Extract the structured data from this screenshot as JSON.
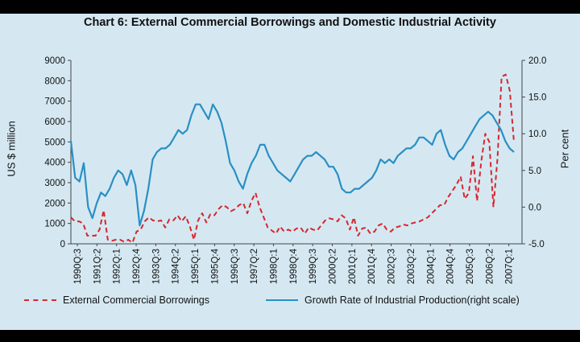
{
  "chart_data": {
    "type": "line",
    "title": "Chart 6: External Commercial Borrowings and Domestic Industrial Activity",
    "ylabel": "US $ million",
    "ylabel_right": "Per cent",
    "ylim": [
      0,
      9000
    ],
    "ylim_right": [
      -5.0,
      20.0
    ],
    "yticks": [
      "0",
      "1000",
      "2000",
      "3000",
      "4000",
      "5000",
      "6000",
      "7000",
      "8000",
      "9000"
    ],
    "yticks_right": [
      "-5.0",
      "0.0",
      "5.0",
      "10.0",
      "15.0",
      "20.0"
    ],
    "xticks": [
      "1990Q:3",
      "1991Q:2",
      "1992Q:1",
      "1992Q:4",
      "1993Q:3",
      "1994Q:2",
      "1995Q:1",
      "1995Q:4",
      "1996Q:3",
      "1997Q:2",
      "1998Q:1",
      "1998Q:4",
      "1999Q:3",
      "2000Q:2",
      "2001Q:1",
      "2001Q:4",
      "2002Q:3",
      "2003Q:2",
      "2004Q:1",
      "2004Q:4",
      "2005Q:3",
      "2006Q:2",
      "2007Q:1"
    ],
    "grid": false,
    "legend_position": "bottom",
    "series": [
      {
        "name": "External Commercial Borrowings",
        "axis": "left",
        "color": "#d6272d",
        "style": "dashed",
        "values": [
          1300,
          1100,
          1100,
          1000,
          400,
          400,
          400,
          700,
          1650,
          200,
          150,
          200,
          200,
          100,
          200,
          50,
          600,
          700,
          1100,
          1300,
          1150,
          1100,
          1150,
          800,
          1200,
          1150,
          1400,
          1100,
          1350,
          850,
          200,
          1150,
          1500,
          1050,
          1450,
          1400,
          1700,
          1900,
          1800,
          1600,
          1700,
          1900,
          2000,
          1500,
          2100,
          2500,
          1800,
          1300,
          800,
          650,
          500,
          850,
          600,
          700,
          600,
          750,
          800,
          500,
          800,
          700,
          650,
          900,
          1150,
          1250,
          1200,
          1100,
          1400,
          1250,
          700,
          1300,
          400,
          750,
          800,
          500,
          600,
          900,
          1000,
          700,
          600,
          800,
          850,
          950,
          900,
          1000,
          1050,
          1100,
          1200,
          1300,
          1500,
          1700,
          1900,
          1900,
          2300,
          2600,
          2900,
          3300,
          2200,
          2500,
          4300,
          2100,
          4000,
          5400,
          5000,
          1800,
          4200,
          8200,
          8300,
          7500,
          5000
        ]
      },
      {
        "name": "Growth Rate of Industrial Production(right scale)",
        "axis": "right",
        "color": "#2a8fc4",
        "style": "solid",
        "values": [
          9.0,
          4.0,
          3.5,
          6.0,
          0.0,
          -1.5,
          0.5,
          2.0,
          1.5,
          2.5,
          4.0,
          5.0,
          4.5,
          3.0,
          5.0,
          3.0,
          -2.5,
          -0.5,
          2.5,
          6.5,
          7.5,
          8.0,
          8.0,
          8.5,
          9.5,
          10.5,
          10.0,
          10.5,
          12.5,
          14.0,
          14.0,
          13.0,
          12.0,
          14.0,
          13.0,
          11.5,
          9.0,
          6.0,
          5.0,
          3.5,
          2.5,
          4.5,
          6.0,
          7.0,
          8.5,
          8.5,
          7.0,
          6.0,
          5.0,
          4.5,
          4.0,
          3.5,
          4.5,
          5.5,
          6.5,
          7.0,
          7.0,
          7.5,
          7.0,
          6.5,
          5.5,
          5.5,
          4.5,
          2.5,
          2.0,
          2.0,
          2.5,
          2.5,
          3.0,
          3.5,
          4.0,
          5.0,
          6.5,
          6.0,
          6.5,
          6.0,
          7.0,
          7.5,
          8.0,
          8.0,
          8.5,
          9.5,
          9.5,
          9.0,
          8.5,
          10.0,
          10.5,
          8.5,
          7.0,
          6.5,
          7.5,
          8.0,
          9.0,
          10.0,
          11.0,
          12.0,
          12.5,
          13.0,
          12.5,
          11.5,
          10.5,
          9.0,
          8.0,
          7.5
        ]
      }
    ]
  }
}
